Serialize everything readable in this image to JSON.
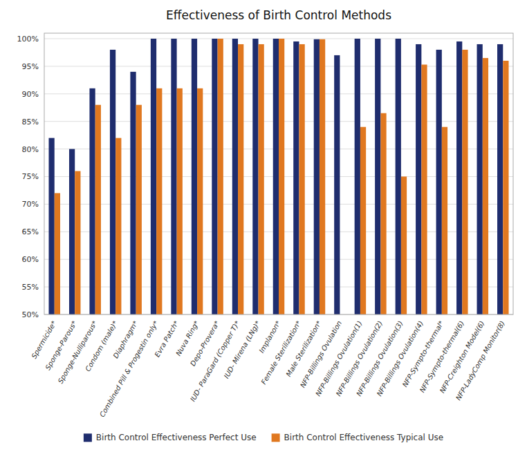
{
  "chart_data": {
    "type": "bar",
    "title": "Effectiveness of Birth Control Methods",
    "categories": [
      "Spermicide*",
      "Sponge-Parous*",
      "Sponge-Nulliparous*",
      "Condom (male)*",
      "Diaphragm*",
      "Combined Pill & Progestin only*",
      "Evra Patch*",
      "Nuva Ring*",
      "Depo-Provera*",
      "IUD- ParaGard (Copper T)*",
      "IUD- Mirena (LNg)*",
      "Implanon*",
      "Female Sterilization*",
      "Male Sterilization*",
      "NFP-Billings Ovulation",
      "NFP-Billings Ovulation(1)",
      "NFP-Billings Ovulation(2)",
      "NFP-Billings Ovulation(3)",
      "NFP-Billings Ovulation(4)",
      "NFP-Sympto-thermal*",
      "NFP-Sympto-thermal(6)",
      "NFP-Creighton Model(6)",
      "NFP-LadyComp Monitor(8)"
    ],
    "series": [
      {
        "name": "Birth Control Effectiveness Perfect Use",
        "color": "#1F2D6E",
        "values": [
          82,
          80,
          91,
          98,
          94,
          100,
          100,
          100,
          100,
          100,
          100,
          100,
          99.5,
          99.9,
          97,
          100,
          100,
          100,
          99,
          98,
          99.5,
          99,
          99
        ]
      },
      {
        "name": "Birth Control Effectiveness Typical Use",
        "color": "#E07820",
        "values": [
          72,
          76,
          88,
          82,
          88,
          91,
          91,
          91,
          100,
          99,
          99,
          100,
          99,
          99.9,
          null,
          84,
          86.5,
          75,
          95.3,
          84,
          98,
          96.5,
          96
        ]
      }
    ],
    "ylim": [
      50,
      101
    ],
    "yticks": [
      {
        "value": 50,
        "label": "50%"
      },
      {
        "value": 55,
        "label": "55%"
      },
      {
        "value": 60,
        "label": "60%"
      },
      {
        "value": 65,
        "label": "65%"
      },
      {
        "value": 70,
        "label": "70%"
      },
      {
        "value": 75,
        "label": "75%"
      },
      {
        "value": 80,
        "label": "80%"
      },
      {
        "value": 85,
        "label": "85%"
      },
      {
        "value": 90,
        "label": "90%"
      },
      {
        "value": 95,
        "label": "95%"
      },
      {
        "value": 100,
        "label": "100%"
      }
    ],
    "grid": true,
    "legend": "bottom"
  }
}
